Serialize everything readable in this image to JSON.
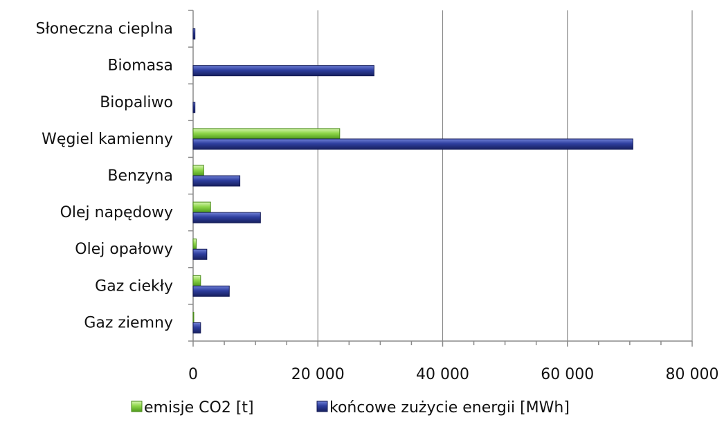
{
  "chart_data": {
    "type": "bar",
    "orientation": "horizontal",
    "categories": [
      "Słoneczna cieplna",
      "Biomasa",
      "Biopaliwo",
      "Węgiel kamienny",
      "Benzyna",
      "Olej napędowy",
      "Olej opałowy",
      "Gaz ciekły",
      "Gaz ziemny"
    ],
    "series": [
      {
        "name": "emisje CO2 [t]",
        "color": "#8ed64a",
        "values": [
          0,
          0,
          0,
          23500,
          1700,
          2800,
          500,
          1200,
          100
        ]
      },
      {
        "name": "końcowe zużycie energii [MWh]",
        "color": "#2e3e9e",
        "values": [
          300,
          29000,
          300,
          70500,
          7500,
          10800,
          2200,
          5800,
          1200
        ]
      }
    ],
    "x_ticks": [
      "0",
      "20 000",
      "40 000",
      "60 000",
      "80 000"
    ],
    "xlim": [
      0,
      80000
    ],
    "xlabel": "",
    "ylabel": "",
    "grid": "vertical",
    "legend": "bottom"
  }
}
